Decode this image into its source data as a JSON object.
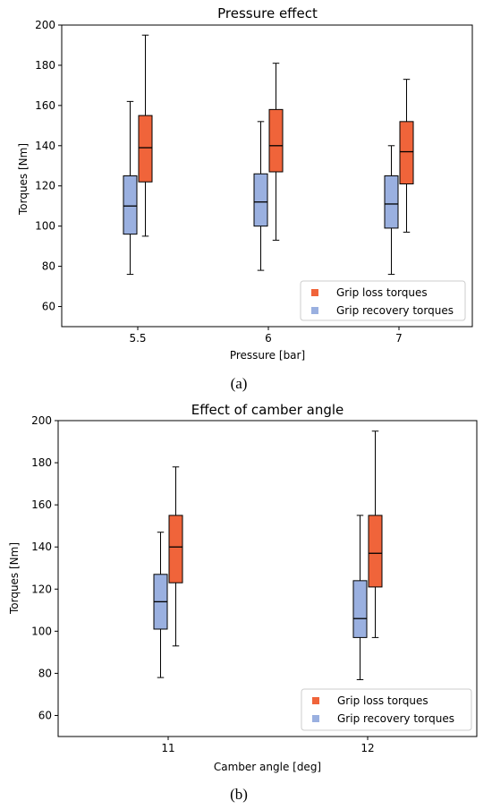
{
  "colors": {
    "loss": "#f0643a",
    "recovery": "#9ab0e0",
    "edge": "#000000"
  },
  "chart_data": [
    {
      "type": "box",
      "title": "Pressure effect",
      "xlabel": "Pressure [bar]",
      "ylabel": "Torques [Nm]",
      "caption": "(a)",
      "categories": [
        "5.5",
        "6",
        "7"
      ],
      "ylim": [
        50,
        200
      ],
      "yticks": [
        60,
        80,
        100,
        120,
        140,
        160,
        180,
        200
      ],
      "legend_position": "lower-right",
      "series": [
        {
          "name": "Grip loss torques",
          "color_key": "loss",
          "boxes": [
            {
              "min": 95,
              "q1": 122,
              "median": 139,
              "q3": 155,
              "max": 195
            },
            {
              "min": 93,
              "q1": 127,
              "median": 140,
              "q3": 158,
              "max": 181
            },
            {
              "min": 97,
              "q1": 121,
              "median": 137,
              "q3": 152,
              "max": 173
            }
          ]
        },
        {
          "name": "Grip recovery torques",
          "color_key": "recovery",
          "boxes": [
            {
              "min": 76,
              "q1": 96,
              "median": 110,
              "q3": 125,
              "max": 162
            },
            {
              "min": 78,
              "q1": 100,
              "median": 112,
              "q3": 126,
              "max": 152
            },
            {
              "min": 76,
              "q1": 99,
              "median": 111,
              "q3": 125,
              "max": 140
            }
          ]
        }
      ]
    },
    {
      "type": "box",
      "title": "Effect of camber angle",
      "xlabel": "Camber angle [deg]",
      "ylabel": "Torques [Nm]",
      "caption": "(b)",
      "categories": [
        "11",
        "12"
      ],
      "ylim": [
        50,
        200
      ],
      "yticks": [
        60,
        80,
        100,
        120,
        140,
        160,
        180,
        200
      ],
      "legend_position": "lower-right",
      "series": [
        {
          "name": "Grip loss torques",
          "color_key": "loss",
          "boxes": [
            {
              "min": 93,
              "q1": 123,
              "median": 140,
              "q3": 155,
              "max": 178
            },
            {
              "min": 97,
              "q1": 121,
              "median": 137,
              "q3": 155,
              "max": 195
            }
          ]
        },
        {
          "name": "Grip recovery torques",
          "color_key": "recovery",
          "boxes": [
            {
              "min": 78,
              "q1": 101,
              "median": 114,
              "q3": 127,
              "max": 147
            },
            {
              "min": 77,
              "q1": 97,
              "median": 106,
              "q3": 124,
              "max": 155
            }
          ]
        }
      ]
    }
  ]
}
